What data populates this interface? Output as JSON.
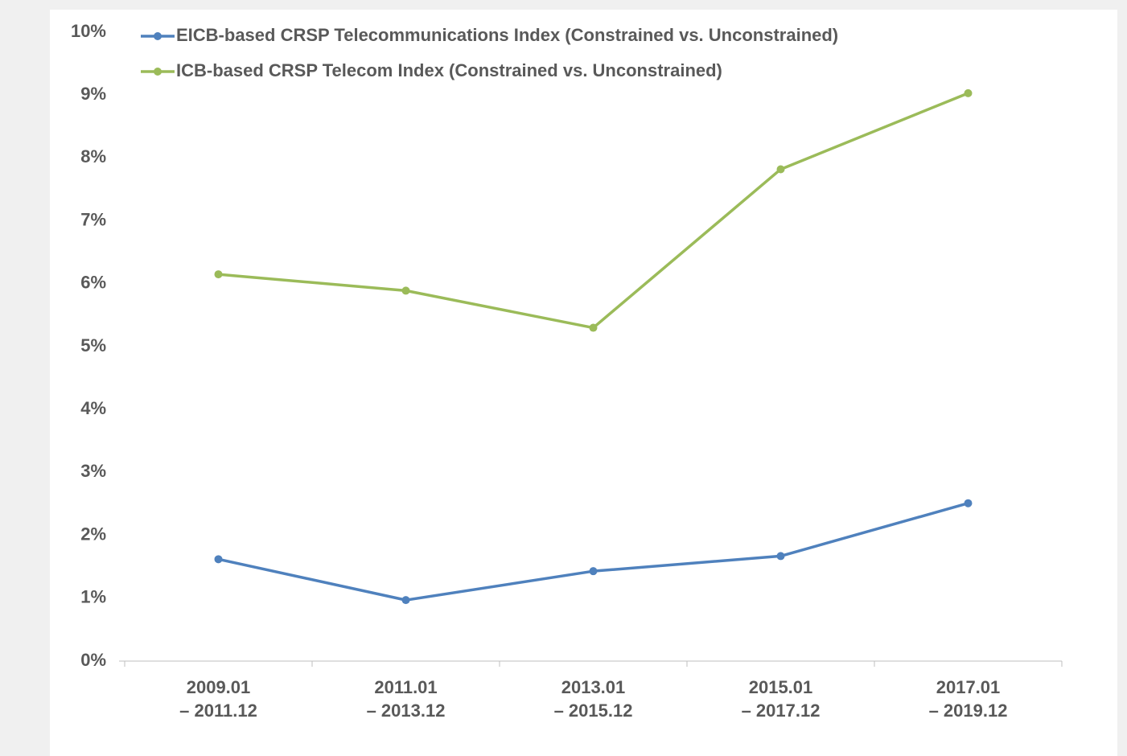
{
  "chart_data": {
    "type": "line",
    "categories": [
      "2009.01\n– 2011.12",
      "2011.01\n– 2013.12",
      "2013.01\n– 2015.12",
      "2015.01\n– 2017.12",
      "2017.01\n– 2019.12"
    ],
    "series": [
      {
        "name": "EICB-based CRSP Telecommunications Index (Constrained vs. Unconstrained)",
        "color": "#4f81bd",
        "values": [
          1.62,
          0.97,
          1.43,
          1.67,
          2.51
        ]
      },
      {
        "name": "ICB-based CRSP Telecom Index (Constrained vs. Unconstrained)",
        "color": "#9bbb59",
        "values": [
          6.15,
          5.89,
          5.3,
          7.82,
          9.03
        ]
      }
    ],
    "ylim": [
      0,
      10
    ],
    "yticks": [
      {
        "value": 0,
        "label": "0%"
      },
      {
        "value": 1,
        "label": "1%"
      },
      {
        "value": 2,
        "label": "2%"
      },
      {
        "value": 3,
        "label": "3%"
      },
      {
        "value": 4,
        "label": "4%"
      },
      {
        "value": 5,
        "label": "5%"
      },
      {
        "value": 6,
        "label": "6%"
      },
      {
        "value": 7,
        "label": "7%"
      },
      {
        "value": 8,
        "label": "8%"
      },
      {
        "value": 9,
        "label": "9%"
      },
      {
        "value": 10,
        "label": "10%"
      }
    ],
    "grid": false,
    "legend": "top-left"
  }
}
